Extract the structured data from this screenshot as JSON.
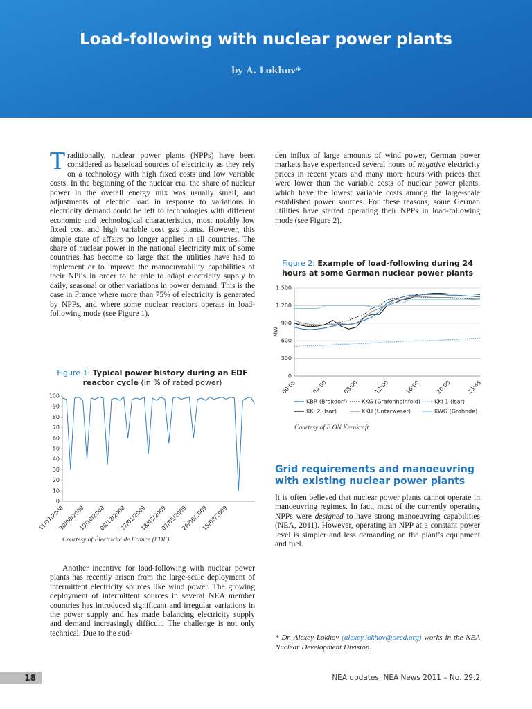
{
  "header": {
    "title": "Load-following with nuclear power plants",
    "byline": "by A. Lokhov*"
  },
  "paragraphs": [
    {
      "drop_cap": "T",
      "runs": [
        "raditionally, nuclear power plants (NPPs) have been considered as baseload sources of electricity as they rely on a technology with high fixed costs and low variable costs. In the beginning of the nuclear era, the share of nuclear power in the overall energy mix was usually small, and adjustments of electric load in response to variations in electricity demand could be left to technologies with different economic and technological characteristics, most notably low fixed cost and high variable cost gas plants. However, this simple state of affairs no longer applies in all countries. The share of nuclear power in the national electricity mix of some countries has become so large that the utilities have had to implement or to improve the manoeuvrability capabilities of their NPPs in order to be able to adapt electricity supply to daily, seasonal or other variations in power demand. This is the case in France where more than 75% of electricity is generated by NPPs, and where some nuclear reactors operate in load-following mode (see Figure 1)."
      ]
    },
    {
      "runs": [
        "Another incentive for load-following with nuclear power plants has recently arisen from the large-scale deployment of intermittent electricity sources like wind power. The growing deployment of intermittent sources in several NEA member countries has introduced significant and irregular variations in the power supply and has made balancing electricity supply and demand increasingly difficult. The challenge is not only technical. Due to the sud-"
      ]
    },
    {
      "runs": [
        "den influx of large amounts of wind power, German power markets have experienced several hours of ",
        {
          "em": "negative"
        },
        " electricity prices in recent years and many more hours with prices that were lower than the variable costs of nuclear power plants, which have the lowest variable costs among the large-scale established power sources. For these reasons, some German utilities have started operating their NPPs in load-following mode (see Figure 2)."
      ]
    },
    {
      "runs": [
        "It is often believed that nuclear power plants cannot operate in manoeuvring regimes. In fact, most of the currently operating NPPs were ",
        {
          "em": "designed"
        },
        " to have strong manoeuvring capabilities (NEA, 2011). However, operating an NPP at a constant power level is simpler and less demanding on the plant’s equipment and fuel."
      ]
    }
  ],
  "section_heading": "Grid requirements and manoeuvring with existing nuclear power plants",
  "footnote": {
    "prefix": "* Dr. Alexey Lokhov ",
    "email": "(alexey.lokhov@oecd.org)",
    "suffix": " works in the NEA Nuclear Development Division."
  },
  "footer": {
    "page": "18",
    "source": "NEA updates, NEA News 2011 – No. 29.2"
  },
  "chart_data": [
    {
      "type": "line",
      "caption": {
        "label": "Figure 1:",
        "title": "Typical power history during an EDF reactor cycle",
        "note": "(in % of rated power)"
      },
      "credit": "Courtesy of Électricité de France (EDF).",
      "categories": [
        "11/07/2008",
        null,
        null,
        null,
        null,
        "30/08/2008",
        null,
        null,
        null,
        null,
        "19/10/2008",
        null,
        null,
        null,
        null,
        "08/12/2008",
        null,
        null,
        null,
        null,
        "27/01/2009",
        null,
        null,
        null,
        null,
        "18/03/2009",
        null,
        null,
        null,
        null,
        "07/05/2009",
        null,
        null,
        null,
        null,
        "26/06/2009",
        null,
        null,
        null,
        null,
        "15/08/2009",
        null,
        null,
        null,
        null,
        null,
        null,
        null
      ],
      "values": [
        98,
        97,
        30,
        98,
        99,
        96,
        40,
        98,
        97,
        99,
        98,
        35,
        97,
        98,
        96,
        99,
        60,
        97,
        98,
        97,
        99,
        45,
        98,
        96,
        99,
        97,
        55,
        98,
        99,
        97,
        98,
        99,
        60,
        97,
        98,
        96,
        99,
        97,
        98,
        99,
        97,
        99,
        98,
        10,
        96,
        98,
        99,
        92
      ],
      "color": "#2f7fc1",
      "ylim": [
        0,
        100
      ],
      "yticks": [
        0,
        10,
        20,
        30,
        40,
        50,
        60,
        70,
        80,
        90,
        100
      ],
      "grid": false
    },
    {
      "type": "line",
      "caption": {
        "label": "Figure 2:",
        "title": "Example of load-following during 24 hours at some German nuclear power plants"
      },
      "credit": "Courtesy of E.ON Kernkraft.",
      "y_label": "MW",
      "categories": [
        "00:05",
        null,
        null,
        null,
        "04:00",
        null,
        null,
        null,
        "08:00",
        null,
        null,
        null,
        "12:00",
        null,
        null,
        null,
        "16:00",
        null,
        null,
        null,
        "20:00",
        null,
        null,
        null,
        "23:45"
      ],
      "series": [
        {
          "name": "KBR (Brokdorf)",
          "color": "#1f6fb5",
          "style": "solid",
          "values": [
            830,
            800,
            790,
            800,
            820,
            850,
            880,
            870,
            900,
            950,
            1000,
            1100,
            1250,
            1300,
            1350,
            1380,
            1380,
            1390,
            1390,
            1390,
            1380,
            1380,
            1370,
            1360,
            1350
          ]
        },
        {
          "name": "KKG (Grafenheinfeld)",
          "color": "#333333",
          "style": "dotted",
          "values": [
            900,
            880,
            860,
            850,
            870,
            900,
            920,
            950,
            1000,
            1050,
            1150,
            1200,
            1300,
            1320,
            1330,
            1350,
            1350,
            1340,
            1340,
            1330,
            1330,
            1320,
            1320,
            1310,
            1300
          ]
        },
        {
          "name": "KKI 1 (Isar)",
          "color": "#4a9fd8",
          "style": "dotted",
          "values": [
            500,
            510,
            510,
            520,
            520,
            530,
            540,
            540,
            550,
            550,
            560,
            570,
            580,
            580,
            590,
            590,
            600,
            600,
            610,
            610,
            620,
            620,
            630,
            640,
            650
          ]
        },
        {
          "name": "KKI 2 (Isar)",
          "color": "#111111",
          "style": "solid",
          "values": [
            900,
            860,
            840,
            850,
            880,
            950,
            850,
            800,
            830,
            1000,
            1050,
            1050,
            1200,
            1250,
            1300,
            1320,
            1400,
            1400,
            1410,
            1410,
            1400,
            1400,
            1400,
            1400,
            1390
          ]
        },
        {
          "name": "KKU (Unterweser)",
          "color": "#8a8a8a",
          "style": "solid",
          "values": [
            950,
            900,
            880,
            870,
            870,
            880,
            890,
            880,
            900,
            1000,
            1100,
            1150,
            1200,
            1300,
            1300,
            1350,
            1350,
            1350,
            1340,
            1340,
            1340,
            1330,
            1330,
            1320,
            1320
          ]
        },
        {
          "name": "KWG (Grohnde)",
          "color": "#7ec3ea",
          "style": "solid",
          "values": [
            1150,
            1150,
            1150,
            1150,
            1200,
            1200,
            1200,
            1200,
            1200,
            1200,
            1180,
            1180,
            1200,
            1250,
            1250,
            1300,
            1300,
            1300,
            1300,
            1300,
            1300,
            1300,
            1300,
            1300,
            1300
          ]
        }
      ],
      "ylim": [
        0,
        1500
      ],
      "yticks": [
        0,
        300,
        600,
        900,
        {
          "value": 1200,
          "label": "1 200"
        },
        {
          "value": 1500,
          "label": "1 500"
        }
      ],
      "grid": true
    }
  ]
}
